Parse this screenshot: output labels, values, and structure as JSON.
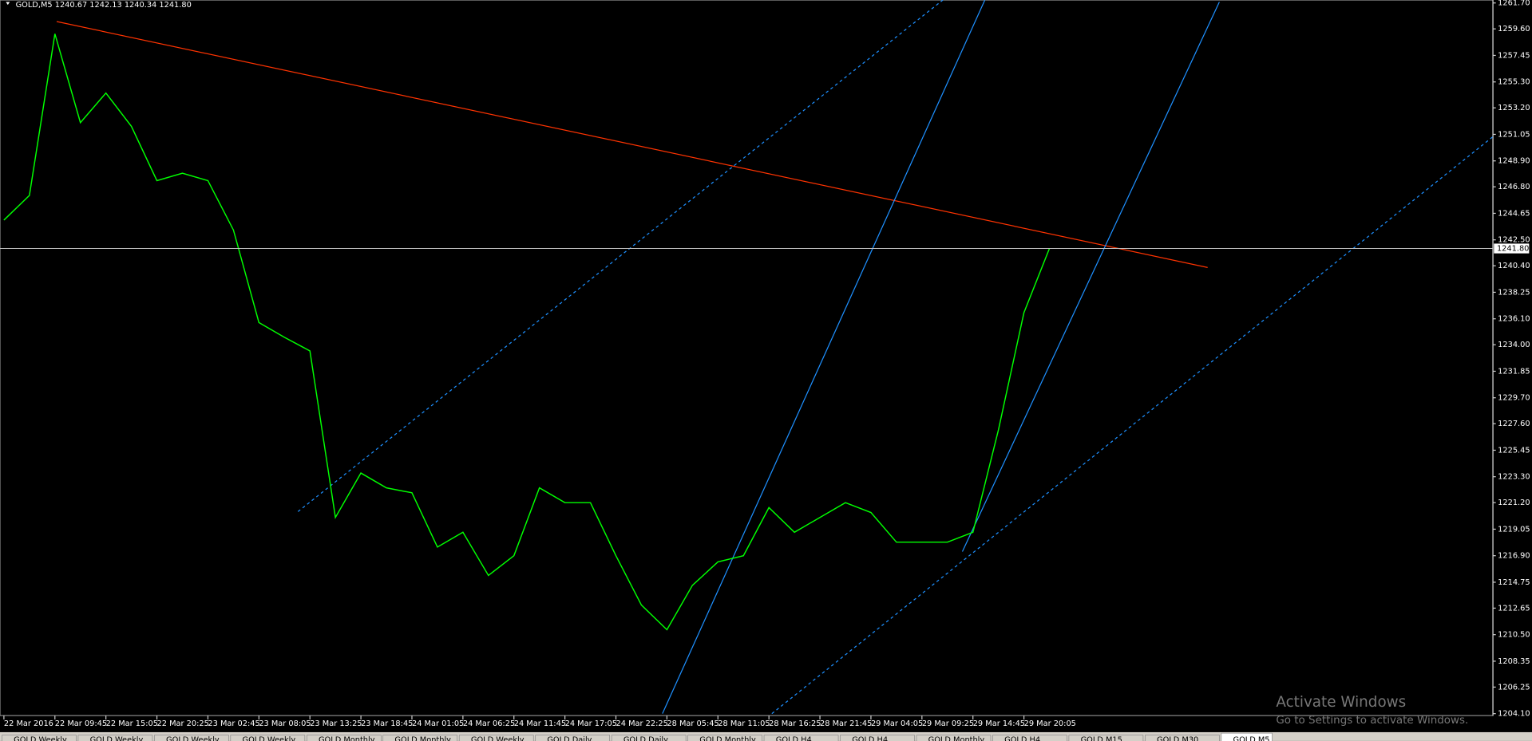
{
  "header": {
    "text": "GOLD,M5  1240.67 1242.13 1240.34 1241.80"
  },
  "chart_data": {
    "type": "line",
    "categories": [
      "22 Mar 2016",
      null,
      "22 Mar 09:45",
      null,
      "22 Mar 15:05",
      null,
      "22 Mar 20:25",
      null,
      "23 Mar 02:45",
      null,
      "23 Mar 08:05",
      null,
      "23 Mar 13:25",
      null,
      "23 Mar 18:45",
      null,
      "24 Mar 01:05",
      null,
      "24 Mar 06:25",
      null,
      "24 Mar 11:45",
      null,
      "24 Mar 17:05",
      null,
      "24 Mar 22:25",
      null,
      "28 Mar 05:45",
      null,
      "28 Mar 11:05",
      null,
      "28 Mar 16:25",
      null,
      "28 Mar 21:45",
      null,
      "29 Mar 04:05",
      null,
      "29 Mar 09:25",
      null,
      "29 Mar 14:45",
      null,
      "29 Mar 20:05",
      null
    ],
    "values": [
      1244.1,
      1246.1,
      1259.2,
      1252.0,
      1254.4,
      1251.7,
      1247.3,
      1247.9,
      1247.3,
      1243.3,
      1235.8,
      1234.6,
      1233.5,
      1220.0,
      1223.6,
      1222.4,
      1222.0,
      1217.6,
      1218.8,
      1215.3,
      1216.9,
      1222.4,
      1221.2,
      1221.2,
      1216.9,
      1212.9,
      1210.9,
      1214.5,
      1216.4,
      1216.9,
      1220.8,
      1218.8,
      1220.0,
      1221.2,
      1220.4,
      1218.0,
      1218.0,
      1218.0,
      1218.8,
      1227.1,
      1236.6,
      1241.8
    ],
    "color": "#00ff00",
    "ylim": [
      1204.1,
      1261.7
    ],
    "yticks": [
      {
        "value": 1261.7,
        "label": "1261.70"
      },
      {
        "value": 1259.6,
        "label": "1259.60"
      },
      {
        "value": 1257.45,
        "label": "1257.45"
      },
      {
        "value": 1255.3,
        "label": "1255.30"
      },
      {
        "value": 1253.2,
        "label": "1253.20"
      },
      {
        "value": 1251.05,
        "label": "1251.05"
      },
      {
        "value": 1248.9,
        "label": "1248.90"
      },
      {
        "value": 1246.8,
        "label": "1246.80"
      },
      {
        "value": 1244.65,
        "label": "1244.65"
      },
      {
        "value": 1242.5,
        "label": "1242.50"
      },
      {
        "value": 1240.4,
        "label": "1240.40"
      },
      {
        "value": 1238.25,
        "label": "1238.25"
      },
      {
        "value": 1236.1,
        "label": "1236.10"
      },
      {
        "value": 1234,
        "label": "1234.00"
      },
      {
        "value": 1231.85,
        "label": "1231.85"
      },
      {
        "value": 1229.7,
        "label": "1229.70"
      },
      {
        "value": 1227.6,
        "label": "1227.60"
      },
      {
        "value": 1225.45,
        "label": "1225.45"
      },
      {
        "value": 1223.3,
        "label": "1223.30"
      },
      {
        "value": 1221.2,
        "label": "1221.20"
      },
      {
        "value": 1219.05,
        "label": "1219.05"
      },
      {
        "value": 1216.9,
        "label": "1216.90"
      },
      {
        "value": 1214.75,
        "label": "1214.75"
      },
      {
        "value": 1212.65,
        "label": "1212.65"
      },
      {
        "value": 1210.5,
        "label": "1210.50"
      },
      {
        "value": 1208.35,
        "label": "1208.35"
      },
      {
        "value": 1206.25,
        "label": "1206.25"
      },
      {
        "value": 1204.1,
        "label": "1204.10"
      }
    ],
    "current_price": {
      "value": 1241.8,
      "label": "1241.80"
    }
  },
  "tabs": [
    "GOLD,Weekly",
    "GOLD,Weekly",
    "GOLD,Weekly",
    "GOLD,Weekly",
    "GOLD,Monthly",
    "GOLD,Monthly",
    "GOLD,Weekly",
    "GOLD,Daily",
    "GOLD,Daily",
    "GOLD,Monthly",
    "GOLD,H4",
    "GOLD,H4",
    "GOLD,Monthly",
    "GOLD,H4",
    "GOLD,M15",
    "GOLD,M30",
    "GOLD,M5"
  ],
  "watermark": {
    "title": "Activate Windows",
    "subtitle": "Go to Settings to activate Windows."
  }
}
